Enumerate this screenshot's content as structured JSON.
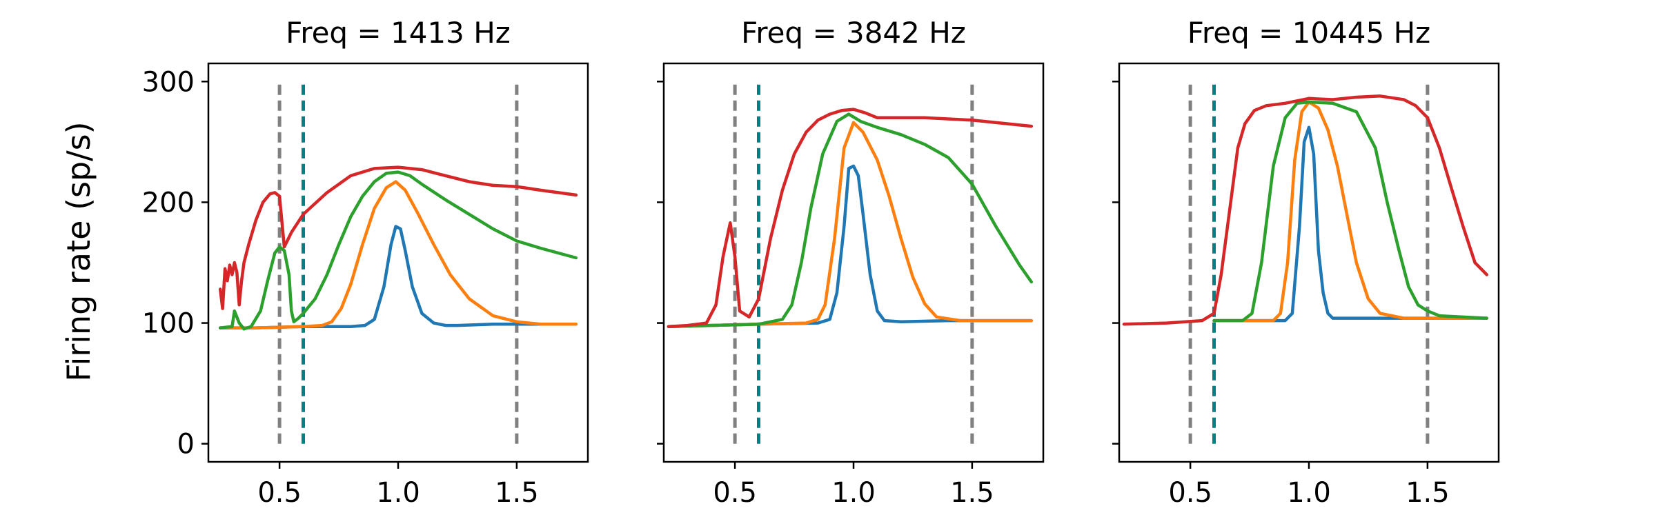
{
  "chart_data": {
    "type": "line",
    "ylabel": "Firing rate (sp/s)",
    "ylim": [
      -15,
      315
    ],
    "yticks": [
      0,
      100,
      200,
      300
    ],
    "xlim": [
      0.2,
      1.8
    ],
    "xticks": [
      0.5,
      1.0,
      1.5
    ],
    "xtick_labels": [
      "0.5",
      "1.0",
      "1.5"
    ],
    "ytick_labels": [
      "0",
      "100",
      "200",
      "300"
    ],
    "series_colors": {
      "blue": "#1f77b4",
      "orange": "#ff7f0e",
      "green": "#2ca02c",
      "red": "#d62728"
    },
    "vline_colors": {
      "gray": "#808080",
      "teal": "#008080"
    },
    "panels": [
      {
        "title": "Freq = 1413 Hz",
        "vlines": [
          {
            "x": 0.5,
            "color": "gray"
          },
          {
            "x": 0.6,
            "color": "teal"
          },
          {
            "x": 1.5,
            "color": "gray"
          }
        ],
        "vline_ymax": 300,
        "series": [
          {
            "name": "blue",
            "x": [
              0.25,
              0.4,
              0.6,
              0.8,
              0.86,
              0.9,
              0.94,
              0.97,
              0.99,
              1.01,
              1.03,
              1.06,
              1.1,
              1.15,
              1.2,
              1.25,
              1.4,
              1.6,
              1.75
            ],
            "y": [
              96,
              96,
              97,
              97,
              98,
              103,
              130,
              165,
              180,
              178,
              160,
              130,
              108,
              100,
              98,
              98,
              99,
              99,
              99
            ]
          },
          {
            "name": "orange",
            "x": [
              0.25,
              0.4,
              0.6,
              0.68,
              0.72,
              0.76,
              0.8,
              0.85,
              0.9,
              0.95,
              0.99,
              1.03,
              1.08,
              1.15,
              1.22,
              1.3,
              1.4,
              1.5,
              1.6,
              1.75
            ],
            "y": [
              96,
              96,
              97,
              98,
              101,
              112,
              132,
              165,
              195,
              212,
              217,
              210,
              192,
              165,
              140,
              120,
              106,
              101,
              99,
              99
            ]
          },
          {
            "name": "green",
            "x": [
              0.25,
              0.3,
              0.31,
              0.33,
              0.35,
              0.38,
              0.42,
              0.45,
              0.48,
              0.5,
              0.52,
              0.54,
              0.55,
              0.56,
              0.58,
              0.6,
              0.65,
              0.7,
              0.75,
              0.8,
              0.85,
              0.9,
              0.95,
              1.0,
              1.05,
              1.1,
              1.2,
              1.3,
              1.4,
              1.5,
              1.6,
              1.75
            ],
            "y": [
              96,
              97,
              110,
              100,
              95,
              97,
              110,
              135,
              158,
              163,
              160,
              140,
              110,
              101,
              104,
              108,
              120,
              140,
              165,
              188,
              205,
              217,
              224,
              225,
              222,
              215,
              202,
              190,
              178,
              168,
              162,
              154
            ]
          },
          {
            "name": "red",
            "x": [
              0.25,
              0.26,
              0.27,
              0.28,
              0.29,
              0.3,
              0.31,
              0.32,
              0.33,
              0.34,
              0.35,
              0.37,
              0.4,
              0.43,
              0.46,
              0.48,
              0.5,
              0.52,
              0.55,
              0.6,
              0.7,
              0.8,
              0.9,
              1.0,
              1.1,
              1.2,
              1.3,
              1.4,
              1.5,
              1.6,
              1.75
            ],
            "y": [
              128,
              112,
              145,
              135,
              148,
              140,
              150,
              142,
              115,
              135,
              150,
              165,
              185,
              200,
              207,
              208,
              205,
              163,
              175,
              190,
              208,
              222,
              228,
              229,
              227,
              222,
              217,
              214,
              213,
              210,
              206
            ]
          }
        ]
      },
      {
        "title": "Freq = 3842 Hz",
        "vlines": [
          {
            "x": 0.5,
            "color": "gray"
          },
          {
            "x": 0.6,
            "color": "teal"
          },
          {
            "x": 1.5,
            "color": "gray"
          }
        ],
        "vline_ymax": 300,
        "series": [
          {
            "name": "blue",
            "x": [
              0.22,
              0.6,
              0.85,
              0.9,
              0.93,
              0.96,
              0.98,
              1.0,
              1.02,
              1.04,
              1.07,
              1.1,
              1.13,
              1.2,
              1.4,
              1.75
            ],
            "y": [
              97,
              99,
              100,
              103,
              125,
              180,
              228,
              230,
              222,
              190,
              140,
              110,
              102,
              101,
              102,
              102
            ]
          },
          {
            "name": "orange",
            "x": [
              0.22,
              0.6,
              0.8,
              0.85,
              0.88,
              0.92,
              0.96,
              1.0,
              1.04,
              1.1,
              1.15,
              1.2,
              1.25,
              1.3,
              1.35,
              1.45,
              1.6,
              1.75
            ],
            "y": [
              97,
              99,
              100,
              103,
              115,
              170,
              245,
              266,
              258,
              235,
              205,
              170,
              138,
              116,
              105,
              102,
              102,
              102
            ]
          },
          {
            "name": "green",
            "x": [
              0.22,
              0.6,
              0.7,
              0.74,
              0.78,
              0.82,
              0.87,
              0.93,
              0.98,
              1.03,
              1.1,
              1.2,
              1.3,
              1.4,
              1.5,
              1.6,
              1.7,
              1.75
            ],
            "y": [
              97,
              99,
              103,
              115,
              150,
              195,
              240,
              267,
              273,
              267,
              262,
              256,
              248,
              237,
              215,
              180,
              148,
              134
            ]
          },
          {
            "name": "red",
            "x": [
              0.22,
              0.3,
              0.38,
              0.42,
              0.45,
              0.48,
              0.5,
              0.52,
              0.56,
              0.6,
              0.65,
              0.7,
              0.75,
              0.8,
              0.85,
              0.9,
              0.95,
              1.0,
              1.05,
              1.1,
              1.3,
              1.5,
              1.75
            ],
            "y": [
              97,
              98,
              100,
              115,
              155,
              183,
              155,
              110,
              105,
              120,
              170,
              210,
              240,
              258,
              268,
              273,
              276,
              277,
              274,
              270,
              270,
              268,
              263
            ]
          }
        ]
      },
      {
        "title": "Freq = 10445 Hz",
        "vlines": [
          {
            "x": 0.5,
            "color": "gray"
          },
          {
            "x": 0.6,
            "color": "teal"
          },
          {
            "x": 1.5,
            "color": "gray"
          }
        ],
        "vline_ymax": 300,
        "series": [
          {
            "name": "blue",
            "x": [
              0.6,
              0.9,
              0.93,
              0.96,
              0.98,
              1.0,
              1.02,
              1.04,
              1.06,
              1.08,
              1.1,
              1.2,
              1.75
            ],
            "y": [
              102,
              102,
              108,
              180,
              250,
              262,
              240,
              160,
              125,
              108,
              104,
              104,
              104
            ]
          },
          {
            "name": "orange",
            "x": [
              0.6,
              0.85,
              0.88,
              0.91,
              0.94,
              0.97,
              1.0,
              1.04,
              1.08,
              1.12,
              1.16,
              1.2,
              1.25,
              1.3,
              1.4,
              1.75
            ],
            "y": [
              102,
              102,
              108,
              150,
              235,
              275,
              283,
              278,
              260,
              230,
              190,
              150,
              120,
              108,
              104,
              104
            ]
          },
          {
            "name": "green",
            "x": [
              0.6,
              0.72,
              0.76,
              0.8,
              0.85,
              0.9,
              0.95,
              1.0,
              1.1,
              1.2,
              1.28,
              1.33,
              1.38,
              1.42,
              1.46,
              1.5,
              1.55,
              1.75
            ],
            "y": [
              102,
              102,
              108,
              150,
              230,
              270,
              282,
              283,
              282,
              275,
              245,
              200,
              160,
              130,
              115,
              110,
              106,
              104
            ]
          },
          {
            "name": "red",
            "x": [
              0.22,
              0.4,
              0.55,
              0.6,
              0.63,
              0.67,
              0.7,
              0.73,
              0.77,
              0.82,
              0.9,
              1.0,
              1.1,
              1.2,
              1.3,
              1.4,
              1.45,
              1.5,
              1.55,
              1.6,
              1.65,
              1.7,
              1.75
            ],
            "y": [
              99,
              100,
              102,
              108,
              140,
              200,
              245,
              265,
              276,
              280,
              282,
              286,
              285,
              287,
              288,
              285,
              280,
              270,
              245,
              212,
              180,
              150,
              140
            ]
          }
        ]
      }
    ]
  }
}
